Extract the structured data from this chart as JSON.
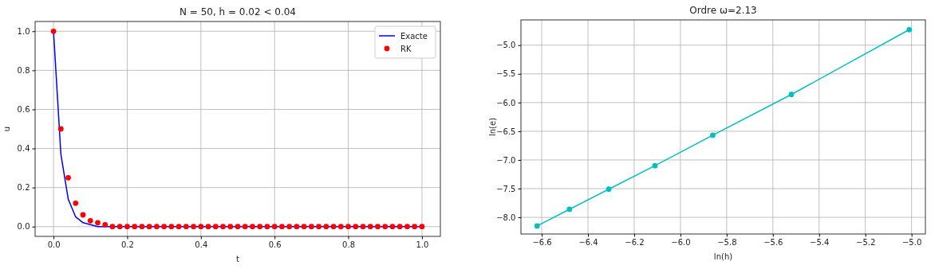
{
  "chart_data": [
    {
      "type": "line",
      "title": "N = 50, h = 0.02 < 0.04",
      "xlabel": "t",
      "ylabel": "u",
      "xlim": [
        -0.05,
        1.05
      ],
      "ylim": [
        -0.05,
        1.05
      ],
      "xticks": [
        {
          "value": 0,
          "label": "0.0"
        },
        0.2,
        0.4,
        0.6,
        0.8,
        {
          "value": 1,
          "label": "1.0"
        }
      ],
      "yticks": [
        {
          "value": 0,
          "label": "0.0"
        },
        0.2,
        0.4,
        0.6,
        0.8,
        {
          "value": 1,
          "label": "1.0"
        }
      ],
      "grid": true,
      "legend": "top right",
      "x": [
        0,
        0.02,
        0.04,
        0.06,
        0.08,
        0.1,
        0.12,
        0.14,
        0.16,
        0.18,
        0.2,
        0.22,
        0.24,
        0.26,
        0.28,
        0.3,
        0.32,
        0.34,
        0.36,
        0.38,
        0.4,
        0.42,
        0.44,
        0.46,
        0.48,
        0.5,
        0.52,
        0.54,
        0.56,
        0.58,
        0.6,
        0.62,
        0.64,
        0.66,
        0.68,
        0.7,
        0.72,
        0.74,
        0.76,
        0.78,
        0.8,
        0.82,
        0.84,
        0.86,
        0.88,
        0.9,
        0.92,
        0.94,
        0.96,
        0.98,
        1
      ],
      "series": [
        {
          "name": "Exacte",
          "color": "#0000ff",
          "marker": "none",
          "values": [
            1,
            0.37,
            0.14,
            0.05,
            0.02,
            0.01,
            0,
            0,
            0,
            0,
            0,
            0,
            0,
            0,
            0,
            0,
            0,
            0,
            0,
            0,
            0,
            0,
            0,
            0,
            0,
            0,
            0,
            0,
            0,
            0,
            0,
            0,
            0,
            0,
            0,
            0,
            0,
            0,
            0,
            0,
            0,
            0,
            0,
            0,
            0,
            0,
            0,
            0,
            0,
            0,
            0
          ]
        },
        {
          "name": "RK",
          "type": "scatter",
          "color": "#ff0000",
          "marker": "circle",
          "values": [
            1,
            0.5,
            0.25,
            0.12,
            0.06,
            0.03,
            0.02,
            0.01,
            0,
            0,
            0,
            0,
            0,
            0,
            0,
            0,
            0,
            0,
            0,
            0,
            0,
            0,
            0,
            0,
            0,
            0,
            0,
            0,
            0,
            0,
            0,
            0,
            0,
            0,
            0,
            0,
            0,
            0,
            0,
            0,
            0,
            0,
            0,
            0,
            0,
            0,
            0,
            0,
            0,
            0,
            0
          ]
        }
      ]
    },
    {
      "type": "line",
      "title": "Ordre ω=2.13",
      "xlabel": "ln(h)",
      "ylabel": "ln(e)",
      "xlim": [
        -6.69,
        -4.94
      ],
      "ylim": [
        -8.29,
        -4.56
      ],
      "xticks": [
        {
          "value": -6.6,
          "label": "−6.6"
        },
        {
          "value": -6.4,
          "label": "−6.4"
        },
        {
          "value": -6.2,
          "label": "−6.2"
        },
        {
          "value": -6,
          "label": "−6.0"
        },
        {
          "value": -5.8,
          "label": "−5.8"
        },
        {
          "value": -5.6,
          "label": "−5.6"
        },
        {
          "value": -5.4,
          "label": "−5.4"
        },
        {
          "value": -5.2,
          "label": "−5.2"
        },
        {
          "value": -5,
          "label": "−5.0"
        }
      ],
      "yticks": [
        {
          "value": -8,
          "label": "−8.0"
        },
        {
          "value": -7.5,
          "label": "−7.5"
        },
        {
          "value": -7,
          "label": "−7.0"
        },
        {
          "value": -6.5,
          "label": "−6.5"
        },
        {
          "value": -6,
          "label": "−6.0"
        },
        {
          "value": -5.5,
          "label": "−5.5"
        },
        {
          "value": -5,
          "label": "−5.0"
        }
      ],
      "grid": true,
      "x": [
        -6.62,
        -6.48,
        -6.31,
        -6.11,
        -5.86,
        -5.52,
        -5.01
      ],
      "series": [
        {
          "color": "#00bfbf",
          "marker": "circle",
          "values": [
            -8.15,
            -7.86,
            -7.51,
            -7.1,
            -6.57,
            -5.86,
            -4.73
          ]
        }
      ]
    }
  ]
}
